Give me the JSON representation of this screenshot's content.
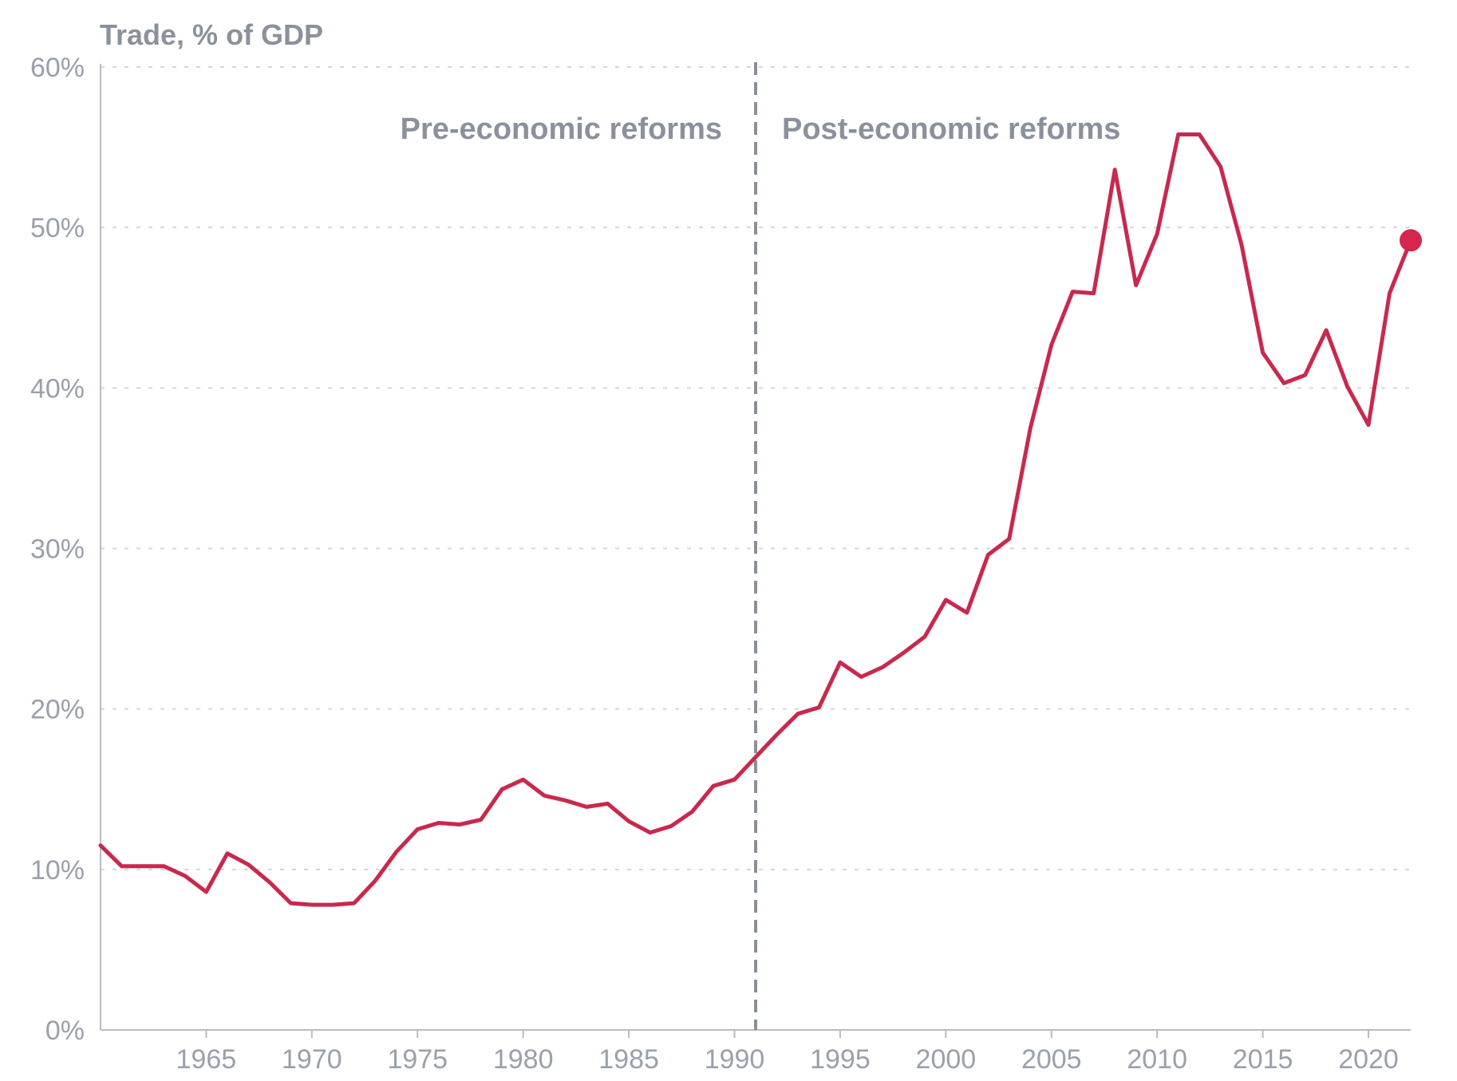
{
  "chart_data": {
    "type": "line",
    "ylabel": "Trade, % of GDP",
    "ylim": [
      0,
      60
    ],
    "yticks": [
      "0%",
      "10%",
      "20%",
      "30%",
      "40%",
      "50%",
      "60%"
    ],
    "xlim": [
      1960,
      2022
    ],
    "xticks": [
      "1965",
      "1970",
      "1975",
      "1980",
      "1985",
      "1990",
      "1995",
      "2000",
      "2005",
      "2010",
      "2015",
      "2020"
    ],
    "grid": true,
    "reference_line": {
      "x": 1991
    },
    "annotations": [
      "Pre-economic reforms",
      "Post-economic reforms"
    ],
    "series": [
      {
        "color": "#c8294e",
        "end_marker": true,
        "x": [
          1960,
          1961,
          1962,
          1963,
          1964,
          1965,
          1966,
          1967,
          1968,
          1969,
          1970,
          1971,
          1972,
          1973,
          1974,
          1975,
          1976,
          1977,
          1978,
          1979,
          1980,
          1981,
          1982,
          1983,
          1984,
          1985,
          1986,
          1987,
          1988,
          1989,
          1990,
          1991,
          1992,
          1993,
          1994,
          1995,
          1996,
          1997,
          1998,
          1999,
          2000,
          2001,
          2002,
          2003,
          2004,
          2005,
          2006,
          2007,
          2008,
          2009,
          2010,
          2011,
          2012,
          2013,
          2014,
          2015,
          2016,
          2017,
          2018,
          2019,
          2020,
          2021,
          2022
        ],
        "y": [
          11.5,
          10.2,
          10.2,
          10.2,
          9.6,
          8.6,
          11.0,
          10.3,
          9.2,
          7.9,
          7.8,
          7.8,
          7.9,
          9.3,
          11.1,
          12.5,
          12.9,
          12.8,
          13.1,
          15.0,
          15.6,
          14.6,
          14.3,
          13.9,
          14.1,
          13.0,
          12.3,
          12.7,
          13.6,
          15.2,
          15.6,
          17.0,
          18.4,
          19.7,
          20.1,
          22.9,
          22.0,
          22.6,
          23.5,
          24.5,
          26.8,
          26.0,
          29.6,
          30.6,
          37.5,
          42.7,
          46.0,
          45.9,
          53.6,
          46.4,
          49.6,
          55.8,
          55.8,
          53.8,
          48.9,
          42.2,
          40.3,
          40.8,
          43.6,
          40.1,
          37.7,
          45.9,
          49.2
        ]
      }
    ]
  }
}
